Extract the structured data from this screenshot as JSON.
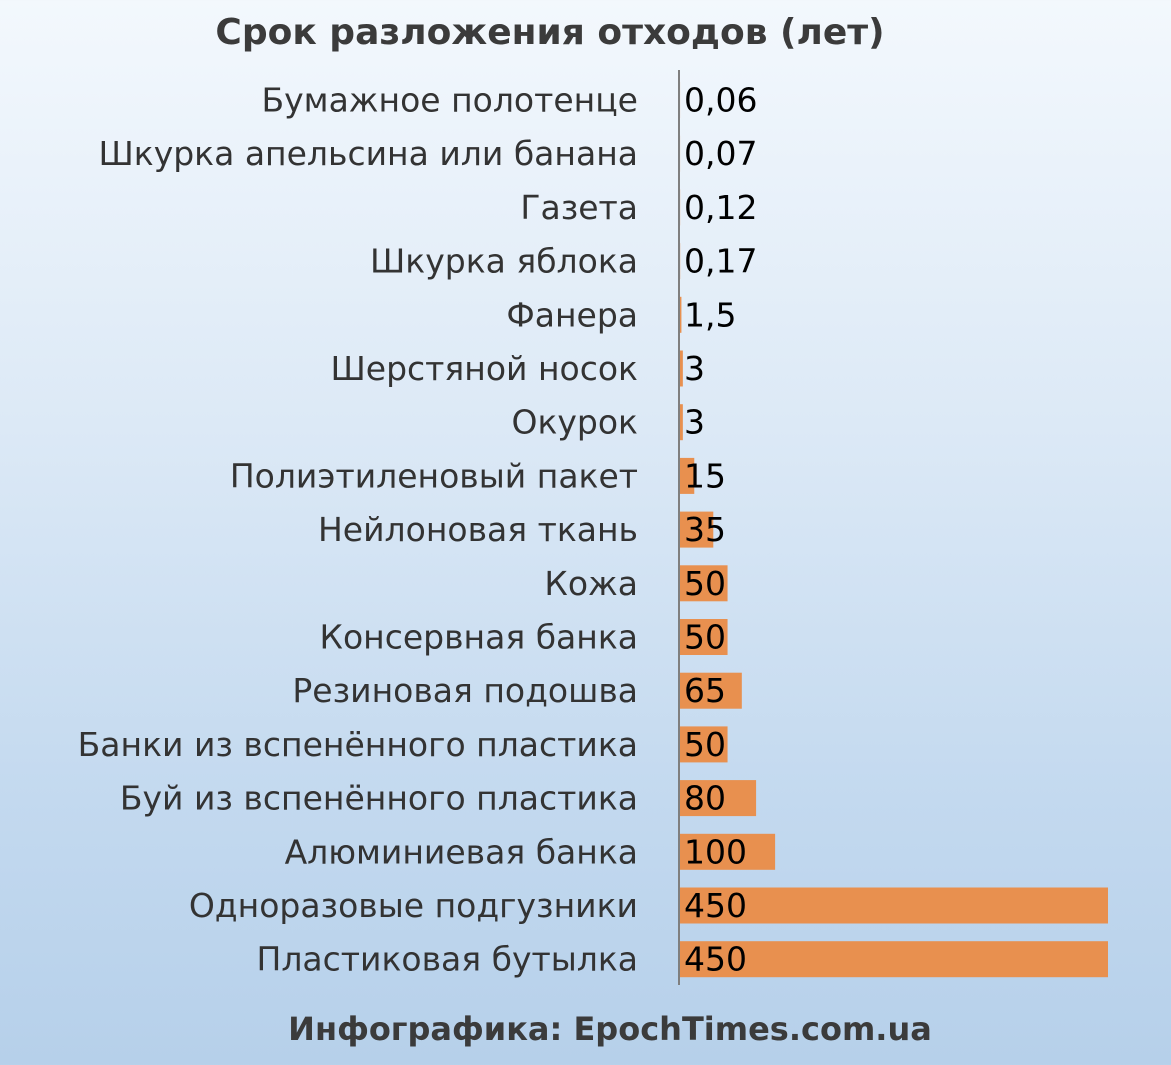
{
  "chart_data": {
    "type": "bar",
    "orientation": "horizontal",
    "title": "Срок разложения отходов (лет)",
    "categories": [
      "Бумажное полотенце",
      "Шкурка апельсина или банана",
      "Газета",
      "Шкурка яблока",
      "Фанера",
      "Шерстяной носок",
      "Окурок",
      "Полиэтиленовый пакет",
      "Нейлоновая ткань",
      "Кожа",
      "Консервная банка",
      "Резиновая подошва",
      "Банки из вспенённого пластика",
      "Буй из вспенённого пластика",
      "Алюминиевая банка",
      "Одноразовые подгузники",
      "Пластиковая бутылка"
    ],
    "values": [
      0.06,
      0.07,
      0.12,
      0.17,
      1.5,
      3,
      3,
      15,
      35,
      50,
      50,
      65,
      50,
      80,
      100,
      450,
      450
    ],
    "value_labels": [
      "0,06",
      "0,07",
      "0,12",
      "0,17",
      "1,5",
      "3",
      "3",
      "15",
      "35",
      "50",
      "50",
      "65",
      "50",
      "80",
      "100",
      "450",
      "450"
    ],
    "xlim": [
      0,
      450
    ],
    "bar_color": "#e8904f",
    "axis_color": "#7f7f7f",
    "grid": false,
    "legend": "none"
  },
  "credit": "Инфографика: EpochTimes.com.ua"
}
